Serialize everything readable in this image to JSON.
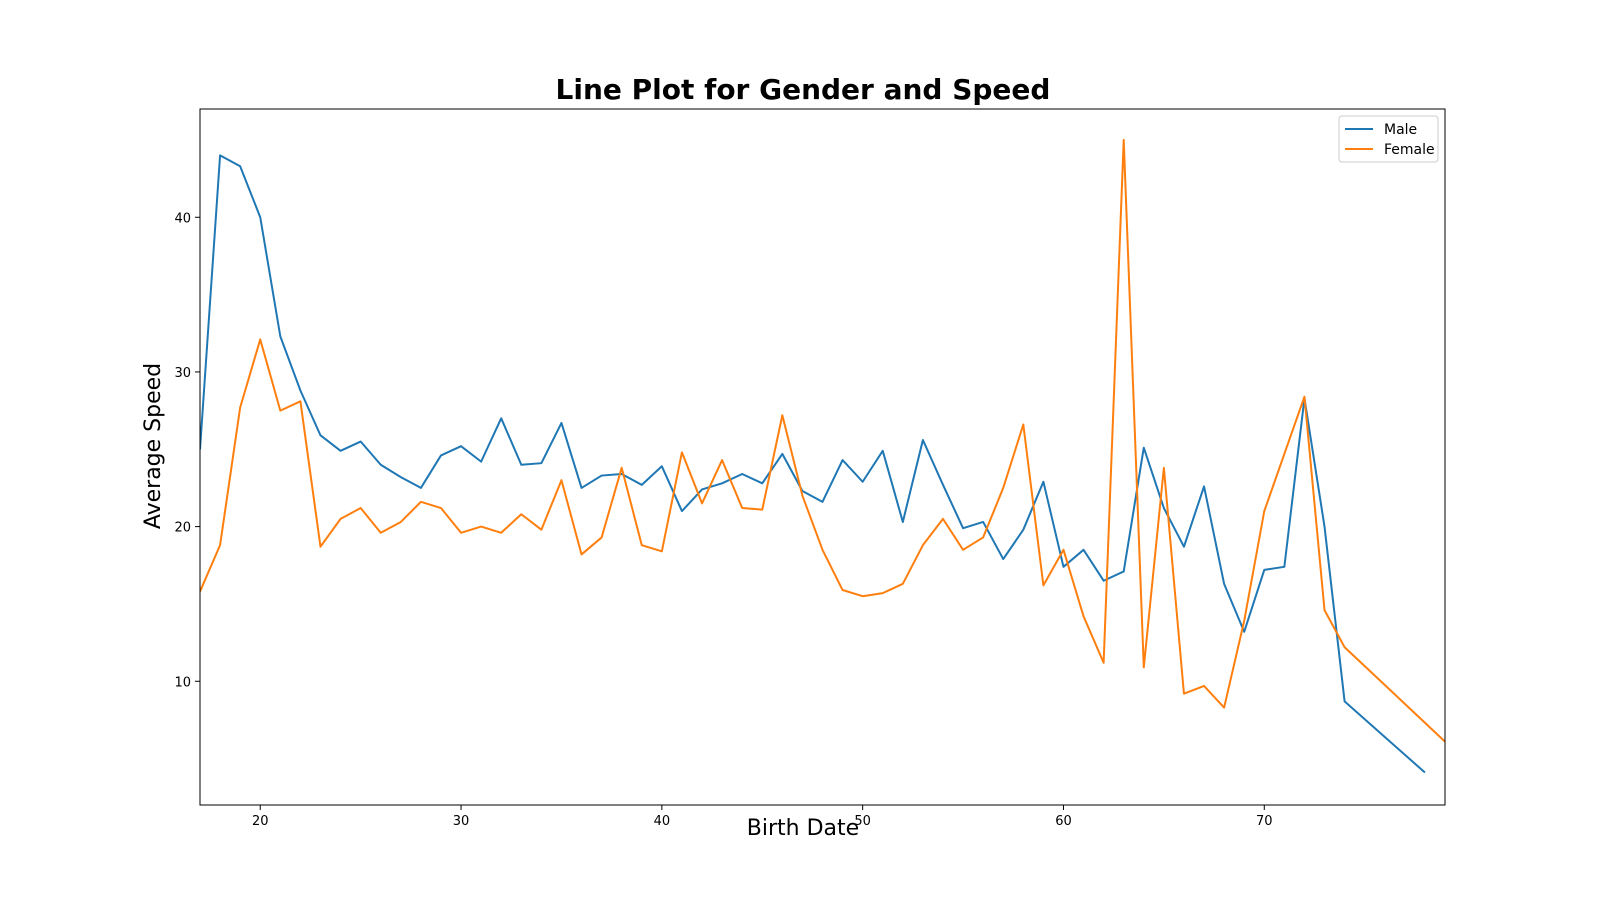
{
  "chart_data": {
    "type": "line",
    "title": "Line Plot for Gender and Speed",
    "xlabel": "Birth Date",
    "ylabel": "Average Speed",
    "xlim": [
      17,
      79
    ],
    "ylim": [
      2,
      47
    ],
    "xticks": [
      20,
      30,
      40,
      50,
      60,
      70
    ],
    "yticks": [
      10,
      20,
      30,
      40
    ],
    "grid": false,
    "legend_position": "top-right",
    "series": [
      {
        "name": "Male",
        "color": "#1f77b4",
        "points": [
          [
            17,
            25.0
          ],
          [
            18,
            44.0
          ],
          [
            19,
            43.3
          ],
          [
            20,
            40.0
          ],
          [
            21,
            32.3
          ],
          [
            22,
            28.8
          ],
          [
            23,
            25.9
          ],
          [
            24,
            24.9
          ],
          [
            25,
            25.5
          ],
          [
            26,
            24.0
          ],
          [
            27,
            23.2
          ],
          [
            28,
            22.5
          ],
          [
            29,
            24.6
          ],
          [
            30,
            25.2
          ],
          [
            31,
            24.2
          ],
          [
            32,
            27.0
          ],
          [
            33,
            24.0
          ],
          [
            34,
            24.1
          ],
          [
            35,
            26.7
          ],
          [
            36,
            22.5
          ],
          [
            37,
            23.3
          ],
          [
            38,
            23.4
          ],
          [
            39,
            22.7
          ],
          [
            40,
            23.9
          ],
          [
            41,
            21.0
          ],
          [
            42,
            22.4
          ],
          [
            43,
            22.8
          ],
          [
            44,
            23.4
          ],
          [
            45,
            22.8
          ],
          [
            46,
            24.7
          ],
          [
            47,
            22.3
          ],
          [
            48,
            21.6
          ],
          [
            49,
            24.3
          ],
          [
            50,
            22.9
          ],
          [
            51,
            24.9
          ],
          [
            52,
            20.3
          ],
          [
            53,
            25.6
          ],
          [
            54,
            22.7
          ],
          [
            55,
            19.9
          ],
          [
            56,
            20.3
          ],
          [
            57,
            17.9
          ],
          [
            58,
            19.8
          ],
          [
            59,
            22.9
          ],
          [
            60,
            17.4
          ],
          [
            61,
            18.5
          ],
          [
            62,
            16.5
          ],
          [
            63,
            17.1
          ],
          [
            64,
            25.1
          ],
          [
            65,
            21.2
          ],
          [
            66,
            18.7
          ],
          [
            67,
            22.6
          ],
          [
            68,
            16.3
          ],
          [
            69,
            13.2
          ],
          [
            70,
            17.2
          ],
          [
            71,
            17.4
          ],
          [
            72,
            28.3
          ],
          [
            73,
            20.0
          ],
          [
            74,
            8.7
          ],
          [
            78,
            4.1
          ]
        ]
      },
      {
        "name": "Female",
        "color": "#ff7f0e",
        "points": [
          [
            17,
            15.8
          ],
          [
            18,
            18.8
          ],
          [
            19,
            27.7
          ],
          [
            20,
            32.1
          ],
          [
            21,
            27.5
          ],
          [
            22,
            28.1
          ],
          [
            23,
            18.7
          ],
          [
            24,
            20.5
          ],
          [
            25,
            21.2
          ],
          [
            26,
            19.6
          ],
          [
            27,
            20.3
          ],
          [
            28,
            21.6
          ],
          [
            29,
            21.2
          ],
          [
            30,
            19.6
          ],
          [
            31,
            20.0
          ],
          [
            32,
            19.6
          ],
          [
            33,
            20.8
          ],
          [
            34,
            19.8
          ],
          [
            35,
            23.0
          ],
          [
            36,
            18.2
          ],
          [
            37,
            19.3
          ],
          [
            38,
            23.8
          ],
          [
            39,
            18.8
          ],
          [
            40,
            18.4
          ],
          [
            41,
            24.8
          ],
          [
            42,
            21.5
          ],
          [
            43,
            24.3
          ],
          [
            44,
            21.2
          ],
          [
            45,
            21.1
          ],
          [
            46,
            27.2
          ],
          [
            47,
            22.0
          ],
          [
            48,
            18.5
          ],
          [
            49,
            15.9
          ],
          [
            50,
            15.5
          ],
          [
            51,
            15.7
          ],
          [
            52,
            16.3
          ],
          [
            53,
            18.8
          ],
          [
            54,
            20.5
          ],
          [
            55,
            18.5
          ],
          [
            56,
            19.3
          ],
          [
            57,
            22.5
          ],
          [
            58,
            26.6
          ],
          [
            59,
            16.2
          ],
          [
            60,
            18.5
          ],
          [
            61,
            14.2
          ],
          [
            62,
            11.2
          ],
          [
            63,
            45.0
          ],
          [
            64,
            10.9
          ],
          [
            65,
            23.8
          ],
          [
            66,
            9.2
          ],
          [
            67,
            9.7
          ],
          [
            68,
            8.3
          ],
          [
            69,
            13.9
          ],
          [
            70,
            21.0
          ],
          [
            71,
            24.7
          ],
          [
            72,
            28.4
          ],
          [
            73,
            14.6
          ],
          [
            74,
            12.2
          ],
          [
            79,
            6.1
          ]
        ]
      }
    ]
  }
}
